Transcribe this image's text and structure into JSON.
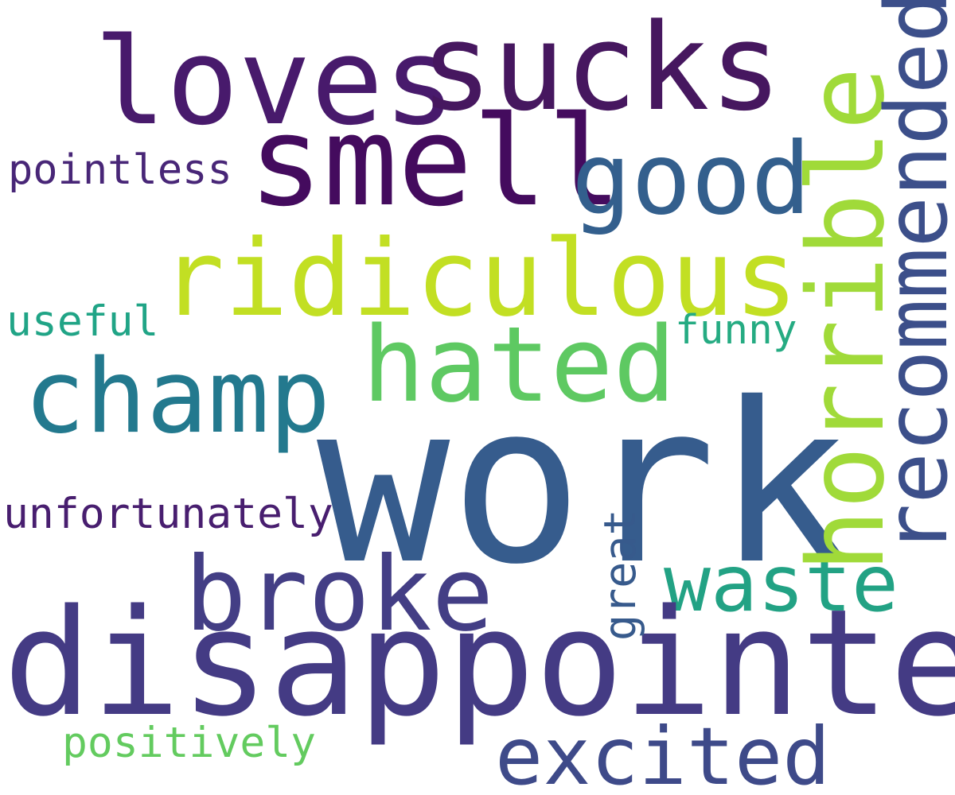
{
  "words": {
    "loves": {
      "text": "loves",
      "color": "#481a6c"
    },
    "sucks": {
      "text": "sucks",
      "color": "#46175f"
    },
    "smell": {
      "text": "smell",
      "color": "#440b5e"
    },
    "good": {
      "text": "good",
      "color": "#335f8d"
    },
    "pointless": {
      "text": "pointless",
      "color": "#482677"
    },
    "ridiculous": {
      "text": "ridiculous",
      "color": "#c2df23"
    },
    "useful": {
      "text": "useful",
      "color": "#20a486"
    },
    "funny": {
      "text": "funny",
      "color": "#25ab82"
    },
    "hated": {
      "text": "hated",
      "color": "#5ec962"
    },
    "champ": {
      "text": "champ",
      "color": "#23798e"
    },
    "work": {
      "text": "work",
      "color": "#365c8d"
    },
    "unfortunately": {
      "text": "unfortunately",
      "color": "#481e6f"
    },
    "broke": {
      "text": "broke",
      "color": "#433e85"
    },
    "waste": {
      "text": "waste",
      "color": "#22a284"
    },
    "disappointed": {
      "text": "disappointed",
      "color": "#443b84"
    },
    "positively": {
      "text": "positively",
      "color": "#63cb5f"
    },
    "excited": {
      "text": "excited",
      "color": "#3e4a89"
    },
    "horrible": {
      "text": "horrible",
      "color": "#a0da39"
    },
    "recommended": {
      "text": "recommended",
      "color": "#3c4f8a"
    },
    "great": {
      "text": "great",
      "color": "#375a8c"
    }
  }
}
